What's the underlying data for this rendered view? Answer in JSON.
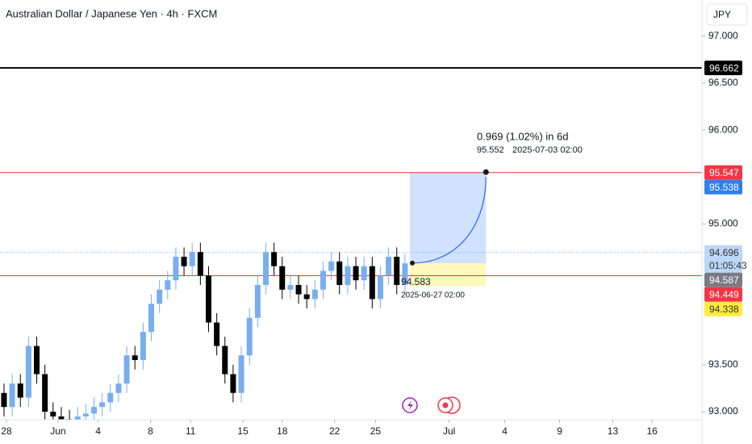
{
  "chart_data": {
    "type": "candlestick",
    "title": "Australian Dollar / Japanese Yen · 4h · FXCM",
    "currency": "JPY",
    "ylim": [
      92.914,
      97.385
    ],
    "yticks": [
      {
        "value": 93,
        "label": "93.000"
      },
      {
        "value": 93.5,
        "label": "93.500"
      },
      {
        "value": 95,
        "label": "95.000"
      },
      {
        "value": 96,
        "label": "96.000"
      },
      {
        "value": 96.5,
        "label": "96.500"
      },
      {
        "value": 97,
        "label": "97.000"
      }
    ],
    "xlim": [
      -0.49,
      85.3
    ],
    "xticks": [
      {
        "value": 0.3,
        "label": "28"
      },
      {
        "value": 6.6,
        "label": "Jun"
      },
      {
        "value": 11.5,
        "label": "4"
      },
      {
        "value": 17.9,
        "label": "8"
      },
      {
        "value": 22.8,
        "label": "11"
      },
      {
        "value": 29.2,
        "label": "15"
      },
      {
        "value": 34.0,
        "label": "18"
      },
      {
        "value": 40.4,
        "label": "22"
      },
      {
        "value": 45.4,
        "label": "25"
      },
      {
        "value": 54.4,
        "label": "Jul"
      },
      {
        "value": 61.2,
        "label": "4"
      },
      {
        "value": 67.9,
        "label": "9"
      },
      {
        "value": 74.4,
        "label": "13"
      },
      {
        "value": 79.2,
        "label": "16"
      }
    ],
    "up_color": "#78aef0",
    "down_color": "#000000",
    "open": [
      93.2,
      93.05,
      93.3,
      93.15,
      93.7,
      93.4,
      93.0,
      92.95,
      92.92,
      92.9,
      92.95,
      92.98,
      93.05,
      93.1,
      93.2,
      93.3,
      93.6,
      93.55,
      93.85,
      94.15,
      94.3,
      94.4,
      94.65,
      94.55,
      94.7,
      94.45,
      93.95,
      93.7,
      93.4,
      93.2,
      93.6,
      94.0,
      94.35,
      94.7,
      94.55,
      94.3,
      94.35,
      94.25,
      94.2,
      94.3,
      94.5,
      94.6,
      94.35,
      94.55,
      94.4,
      94.55,
      94.2,
      94.45,
      94.65,
      94.35
    ],
    "high": [
      93.3,
      93.4,
      93.4,
      93.8,
      93.8,
      93.5,
      93.1,
      93.05,
      93.02,
      93.05,
      93.08,
      93.15,
      93.2,
      93.3,
      93.4,
      93.7,
      93.7,
      93.95,
      94.25,
      94.4,
      94.5,
      94.75,
      94.75,
      94.8,
      94.8,
      94.55,
      94.05,
      93.8,
      93.5,
      93.7,
      94.1,
      94.45,
      94.8,
      94.8,
      94.65,
      94.45,
      94.45,
      94.35,
      94.4,
      94.6,
      94.7,
      94.7,
      94.65,
      94.65,
      94.65,
      94.65,
      94.55,
      94.75,
      94.75,
      94.68
    ],
    "low": [
      92.95,
      92.95,
      93.05,
      93.05,
      93.3,
      92.9,
      92.85,
      92.82,
      92.8,
      92.8,
      92.85,
      92.88,
      92.95,
      93.0,
      93.1,
      93.2,
      93.45,
      93.45,
      93.75,
      94.05,
      94.2,
      94.3,
      94.45,
      94.45,
      94.35,
      93.85,
      93.6,
      93.3,
      93.1,
      93.1,
      93.5,
      93.9,
      94.25,
      94.45,
      94.2,
      94.2,
      94.15,
      94.1,
      94.1,
      94.2,
      94.4,
      94.25,
      94.25,
      94.3,
      94.3,
      94.1,
      94.1,
      94.35,
      94.25,
      94.25
    ],
    "close": [
      93.05,
      93.3,
      93.15,
      93.7,
      93.4,
      93.0,
      92.95,
      92.92,
      92.9,
      92.95,
      92.98,
      93.05,
      93.1,
      93.2,
      93.3,
      93.6,
      93.55,
      93.85,
      94.15,
      94.3,
      94.4,
      94.65,
      94.55,
      94.7,
      94.45,
      93.95,
      93.7,
      93.4,
      93.2,
      93.6,
      94.0,
      94.35,
      94.7,
      94.55,
      94.3,
      94.35,
      94.25,
      94.2,
      94.3,
      94.5,
      94.6,
      94.35,
      94.55,
      94.4,
      94.55,
      94.2,
      94.45,
      94.65,
      94.35,
      94.58
    ],
    "levels": [
      {
        "value": 96.662,
        "color": "#000000"
      },
      {
        "value": 95.547,
        "color": "#e53935"
      },
      {
        "value": 94.449,
        "color": "#e53935"
      }
    ],
    "current_price": 94.696,
    "countdown": "01:05:43",
    "price_labels": [
      {
        "value": 96.662,
        "color": "#000000",
        "text_color": "#ffffff"
      },
      {
        "value": 95.547,
        "color": "#f23645",
        "text_color": "#ffffff"
      },
      {
        "value": 95.538,
        "color": "#2f80ed",
        "text_color": "#ffffff"
      },
      {
        "value": 94.696,
        "color": "#bcd6f5",
        "text_color": "#333333"
      },
      {
        "value": 94.587,
        "color": "#787b86",
        "text_color": "#ffffff"
      },
      {
        "value": 94.449,
        "color": "#f23645",
        "text_color": "#ffffff"
      },
      {
        "value": 94.338,
        "color": "#ffeb3b",
        "text_color": "#333333"
      }
    ],
    "projection": {
      "change_label": "0.969 (1.02%) in 6d",
      "target_price": 95.552,
      "target_time": "2025-07-03  02:00",
      "target_x": 58.9,
      "start_price": 94.583,
      "start_time": "2025-06-27 02:00",
      "start_x": 49.9,
      "floor_price": 94.338
    }
  }
}
